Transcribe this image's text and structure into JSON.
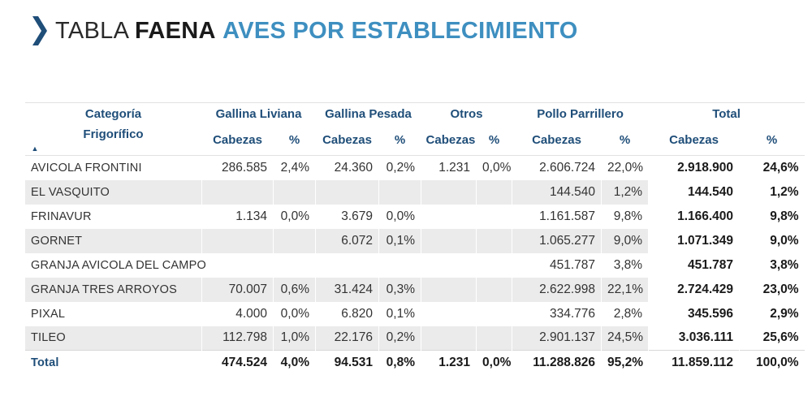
{
  "title": {
    "part1": "TABLA",
    "part2": "FAENA",
    "part3": "AVES POR ESTABLECIMIENTO",
    "accent_color": "#3e8fc0",
    "chevron_color": "#1f4e79"
  },
  "header": {
    "categoria": "Categoría",
    "frigorifico": "Frigorífico",
    "groups": [
      "Gallina Liviana",
      "Gallina Pesada",
      "Otros",
      "Pollo Parrillero",
      "Total"
    ],
    "cabezas": "Cabezas",
    "pct": "%"
  },
  "rows": [
    {
      "name": "AVICOLA FRONTINI",
      "gl_c": "286.585",
      "gl_p": "2,4%",
      "gp_c": "24.360",
      "gp_p": "0,2%",
      "ot_c": "1.231",
      "ot_p": "0,0%",
      "pp_c": "2.606.724",
      "pp_p": "22,0%",
      "t_c": "2.918.900",
      "t_p": "24,6%"
    },
    {
      "name": "EL VASQUITO",
      "gl_c": "",
      "gl_p": "",
      "gp_c": "",
      "gp_p": "",
      "ot_c": "",
      "ot_p": "",
      "pp_c": "144.540",
      "pp_p": "1,2%",
      "t_c": "144.540",
      "t_p": "1,2%"
    },
    {
      "name": "FRINAVUR",
      "gl_c": "1.134",
      "gl_p": "0,0%",
      "gp_c": "3.679",
      "gp_p": "0,0%",
      "ot_c": "",
      "ot_p": "",
      "pp_c": "1.161.587",
      "pp_p": "9,8%",
      "t_c": "1.166.400",
      "t_p": "9,8%"
    },
    {
      "name": "GORNET",
      "gl_c": "",
      "gl_p": "",
      "gp_c": "6.072",
      "gp_p": "0,1%",
      "ot_c": "",
      "ot_p": "",
      "pp_c": "1.065.277",
      "pp_p": "9,0%",
      "t_c": "1.071.349",
      "t_p": "9,0%"
    },
    {
      "name": "GRANJA AVICOLA DEL CAMPO",
      "gl_c": "",
      "gl_p": "",
      "gp_c": "",
      "gp_p": "",
      "ot_c": "",
      "ot_p": "",
      "pp_c": "451.787",
      "pp_p": "3,8%",
      "t_c": "451.787",
      "t_p": "3,8%"
    },
    {
      "name": "GRANJA TRES ARROYOS",
      "gl_c": "70.007",
      "gl_p": "0,6%",
      "gp_c": "31.424",
      "gp_p": "0,3%",
      "ot_c": "",
      "ot_p": "",
      "pp_c": "2.622.998",
      "pp_p": "22,1%",
      "t_c": "2.724.429",
      "t_p": "23,0%"
    },
    {
      "name": "PIXAL",
      "gl_c": "4.000",
      "gl_p": "0,0%",
      "gp_c": "6.820",
      "gp_p": "0,1%",
      "ot_c": "",
      "ot_p": "",
      "pp_c": "334.776",
      "pp_p": "2,8%",
      "t_c": "345.596",
      "t_p": "2,9%"
    },
    {
      "name": "TILEO",
      "gl_c": "112.798",
      "gl_p": "1,0%",
      "gp_c": "22.176",
      "gp_p": "0,2%",
      "ot_c": "",
      "ot_p": "",
      "pp_c": "2.901.137",
      "pp_p": "24,5%",
      "t_c": "3.036.111",
      "t_p": "25,6%"
    }
  ],
  "total": {
    "name": "Total",
    "gl_c": "474.524",
    "gl_p": "4,0%",
    "gp_c": "94.531",
    "gp_p": "0,8%",
    "ot_c": "1.231",
    "ot_p": "0,0%",
    "pp_c": "11.288.826",
    "pp_p": "95,2%",
    "t_c": "11.859.112",
    "t_p": "100,0%"
  }
}
